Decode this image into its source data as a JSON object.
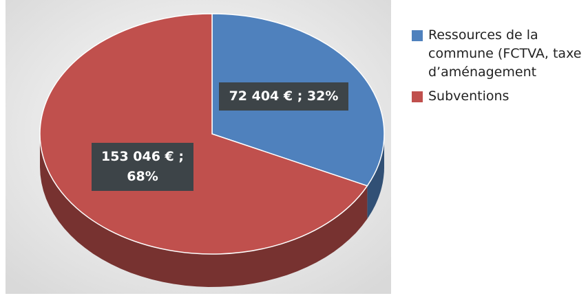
{
  "chart_data": {
    "type": "pie",
    "categories": [
      "Ressources de la commune (FCTVA, taxe d’aménagement",
      "Subventions"
    ],
    "values": [
      72404,
      153046
    ],
    "value_labels": [
      "72 404 € ; 32%",
      "153 046 € ; 68%"
    ],
    "colors": [
      "#4f81bd",
      "#c0504d"
    ]
  }
}
